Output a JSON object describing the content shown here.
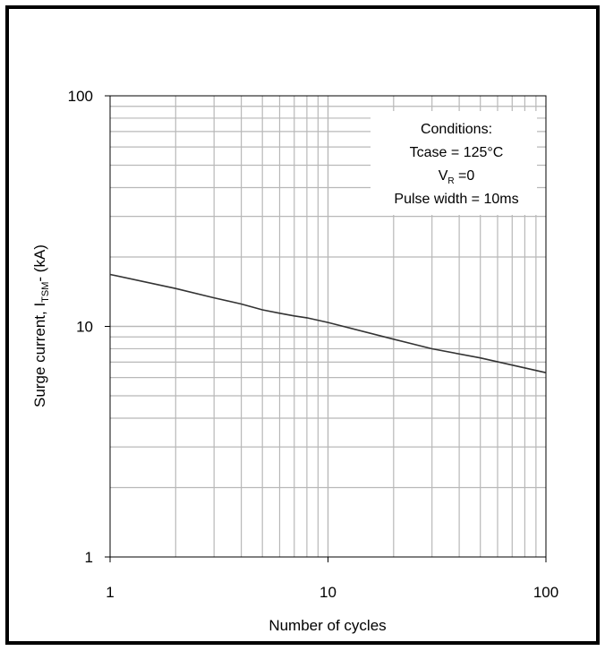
{
  "chart_data": {
    "type": "line",
    "scale": {
      "x": "log",
      "y": "log"
    },
    "xlim": [
      1,
      100
    ],
    "ylim": [
      1,
      100
    ],
    "grid": true,
    "x_ticks": [
      {
        "value": 1,
        "label": "1"
      },
      {
        "value": 10,
        "label": "10"
      },
      {
        "value": 100,
        "label": "100"
      }
    ],
    "y_ticks": [
      {
        "value": 100,
        "label": "100"
      },
      {
        "value": 10,
        "label": "10"
      },
      {
        "value": 1,
        "label": "1"
      }
    ],
    "xlabel": "Number of cycles",
    "ylabel": {
      "main": "Surge current, I",
      "sub": "TSM",
      "suffix": "- (kA)"
    },
    "annotation": {
      "line1": "Conditions:",
      "line2": "Tcase = 125°C",
      "line3_main": "V",
      "line3_sub": "R",
      "line3_rest": " =0",
      "line4": "Pulse width = 10ms"
    },
    "series": [
      {
        "x": [
          1,
          2,
          3,
          4,
          5,
          6,
          7,
          8,
          10,
          20,
          30,
          50,
          100
        ],
        "values": [
          16.8,
          14.6,
          13.3,
          12.5,
          11.8,
          11.4,
          11.1,
          10.9,
          10.4,
          8.8,
          8.0,
          7.3,
          6.3
        ],
        "color": "#333333"
      }
    ]
  }
}
